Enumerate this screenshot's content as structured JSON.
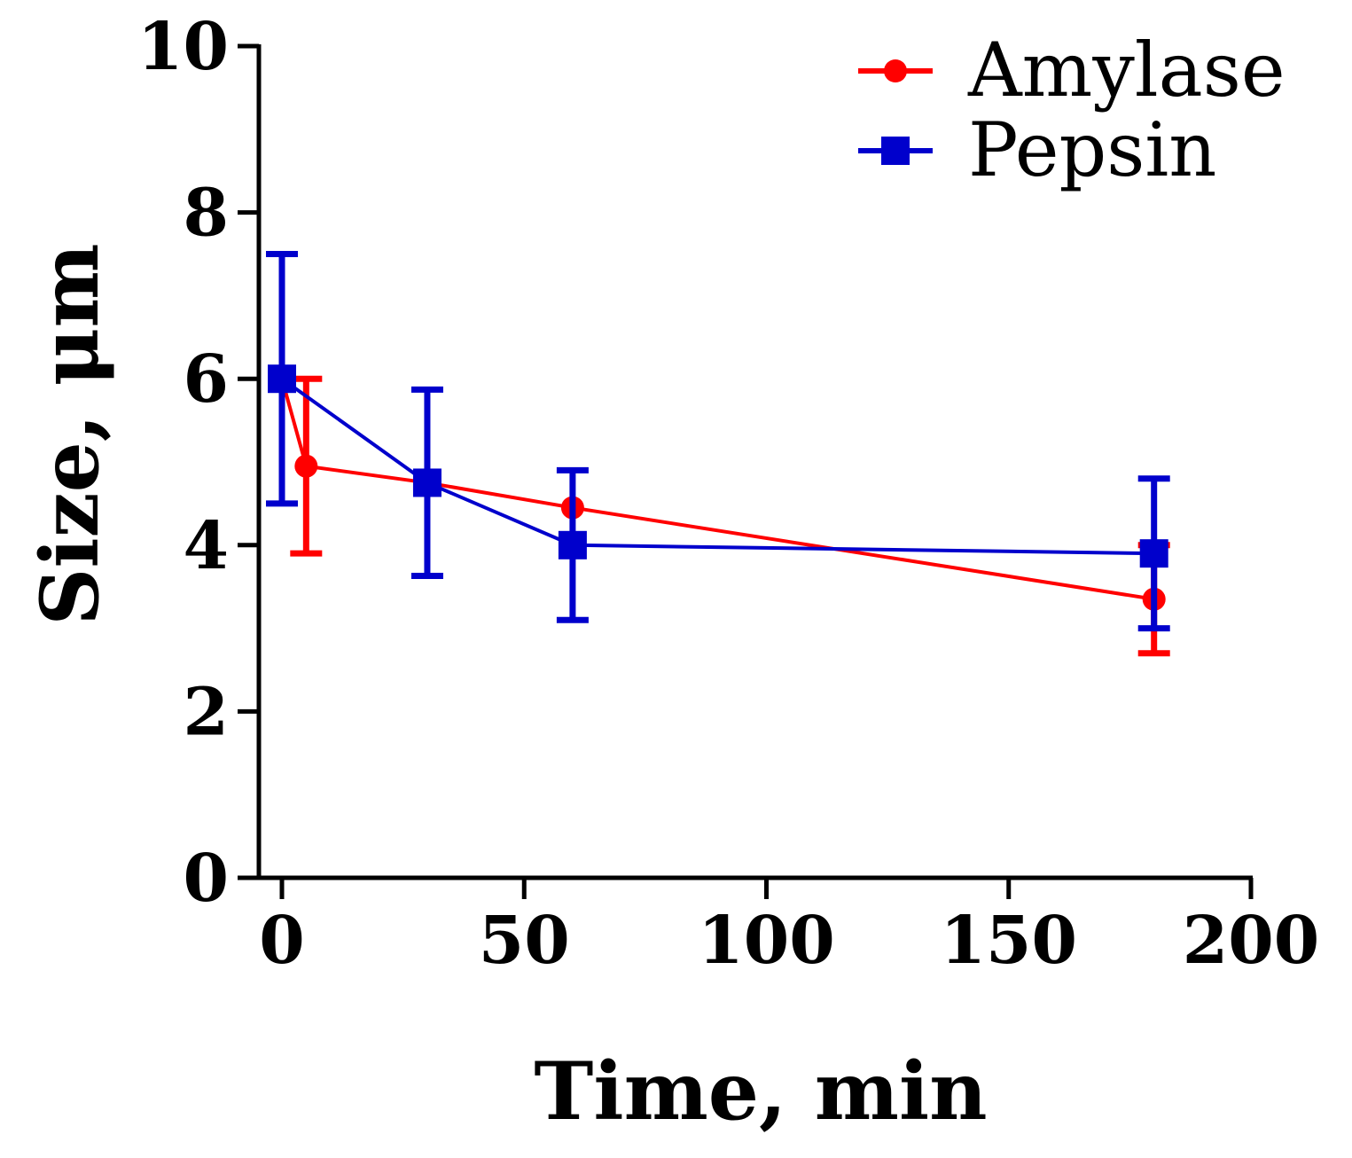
{
  "chart_data": {
    "type": "line",
    "title": "",
    "xlabel": "Time, min",
    "ylabel": "Size, μm",
    "xlim": [
      0,
      200
    ],
    "ylim": [
      0,
      10
    ],
    "xticks": [
      "0",
      "50",
      "100",
      "150",
      "200"
    ],
    "yticks": [
      "0",
      "2",
      "4",
      "6",
      "8",
      "10"
    ],
    "grid": false,
    "legend_position": "top-right",
    "series": [
      {
        "name": "Amylase",
        "color": "#ff0000",
        "marker": "circle",
        "x": [
          0,
          5,
          30,
          60,
          180
        ],
        "y": [
          6.0,
          4.95,
          4.75,
          4.45,
          3.35
        ],
        "err_low": [
          0,
          1.05,
          0,
          0,
          0.65
        ],
        "err_high": [
          0,
          1.05,
          0,
          0,
          0.65
        ]
      },
      {
        "name": "Pepsin",
        "color": "#0000cc",
        "marker": "square",
        "x": [
          0,
          30,
          60,
          180
        ],
        "y": [
          6.0,
          4.75,
          4.0,
          3.9
        ],
        "err_low": [
          1.5,
          1.12,
          0.9,
          0.9
        ],
        "err_high": [
          1.5,
          1.12,
          0.9,
          0.9
        ]
      }
    ]
  }
}
